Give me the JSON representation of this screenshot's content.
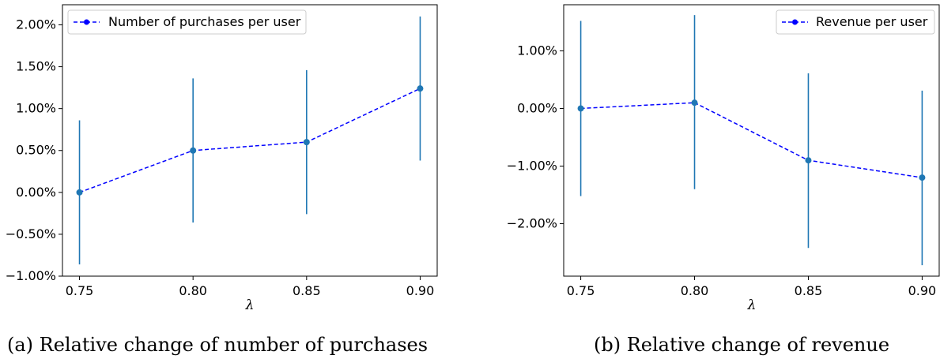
{
  "chart_data": [
    {
      "type": "line",
      "caption": "(a) Relative change of number of purchases",
      "xlabel": "λ",
      "ylabel": "",
      "x": [
        0.75,
        0.8,
        0.85,
        0.9
      ],
      "x_tick_labels": [
        "0.75",
        "0.80",
        "0.85",
        "0.90"
      ],
      "y_ticks": [
        -1.0,
        -0.5,
        0.0,
        0.5,
        1.0,
        1.5,
        2.0
      ],
      "y_tick_labels": [
        "−1.00%",
        "−0.50%",
        "0.00%",
        "0.50%",
        "1.00%",
        "1.50%",
        "2.00%"
      ],
      "xlim": [
        0.7425,
        0.9075
      ],
      "ylim": [
        -1.0,
        2.24
      ],
      "legend_position": "top-left",
      "series": [
        {
          "name": "Number of purchases per user",
          "values": [
            0.0,
            0.5,
            0.6,
            1.24
          ],
          "error_low": [
            -0.86,
            -0.36,
            -0.26,
            0.38
          ],
          "error_high": [
            0.86,
            1.36,
            1.46,
            2.1
          ],
          "line_color": "#0000ff",
          "marker_color": "#1f77b4",
          "errorbar_color": "#1f77b4"
        }
      ]
    },
    {
      "type": "line",
      "caption": "(b) Relative change of revenue",
      "xlabel": "λ",
      "ylabel": "",
      "x": [
        0.75,
        0.8,
        0.85,
        0.9
      ],
      "x_tick_labels": [
        "0.75",
        "0.80",
        "0.85",
        "0.90"
      ],
      "y_ticks": [
        -2.0,
        -1.0,
        0.0,
        1.0
      ],
      "y_tick_labels": [
        "−2.00%",
        "−1.00%",
        "0.00%",
        "1.00%"
      ],
      "xlim": [
        0.7425,
        0.9075
      ],
      "ylim": [
        -2.91,
        1.8
      ],
      "legend_position": "top-right",
      "series": [
        {
          "name": "Revenue per user",
          "values": [
            0.0,
            0.1,
            -0.9,
            -1.2
          ],
          "error_low": [
            -1.52,
            -1.4,
            -2.42,
            -2.72
          ],
          "error_high": [
            1.52,
            1.62,
            0.61,
            0.31
          ],
          "line_color": "#0000ff",
          "marker_color": "#1f77b4",
          "errorbar_color": "#1f77b4"
        }
      ]
    }
  ]
}
